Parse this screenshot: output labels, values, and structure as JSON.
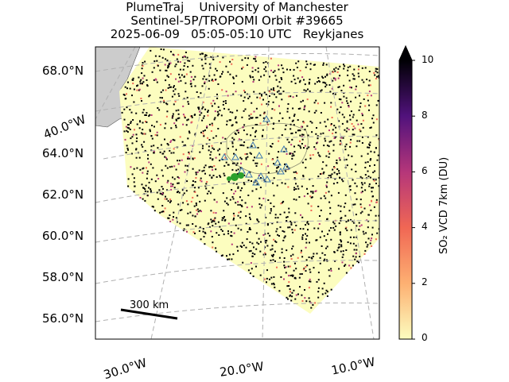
{
  "title": {
    "line1": "PlumeTraj    University of Manchester",
    "line2": "Sentinel-5P/TROPOMI Orbit #39665",
    "line3": "2025-06-09   05:05-05:10 UTC   Reykjanes"
  },
  "map": {
    "lat_labels": [
      "68.0°N",
      "64.0°N",
      "62.0°N",
      "60.0°N",
      "58.0°N",
      "56.0°N"
    ],
    "lon_labels": [
      "40.0°W",
      "30.0°W",
      "20.0°W",
      "10.0°W"
    ],
    "scale_bar_label": "300 km",
    "colors": {
      "land": "#cccccc",
      "swath_low": "#fcfdbf",
      "swath_noise": "#000004",
      "triangles": "#3b75af",
      "points": "#2ca02c",
      "grid": "#b0b0b0"
    }
  },
  "colorbar": {
    "label": "SO₂ VCD 7km (DU)",
    "ticks": [
      "10",
      "8",
      "6",
      "4",
      "2",
      "0"
    ],
    "range": [
      0,
      10
    ],
    "colormap": "magma_r",
    "extend": "max"
  }
}
